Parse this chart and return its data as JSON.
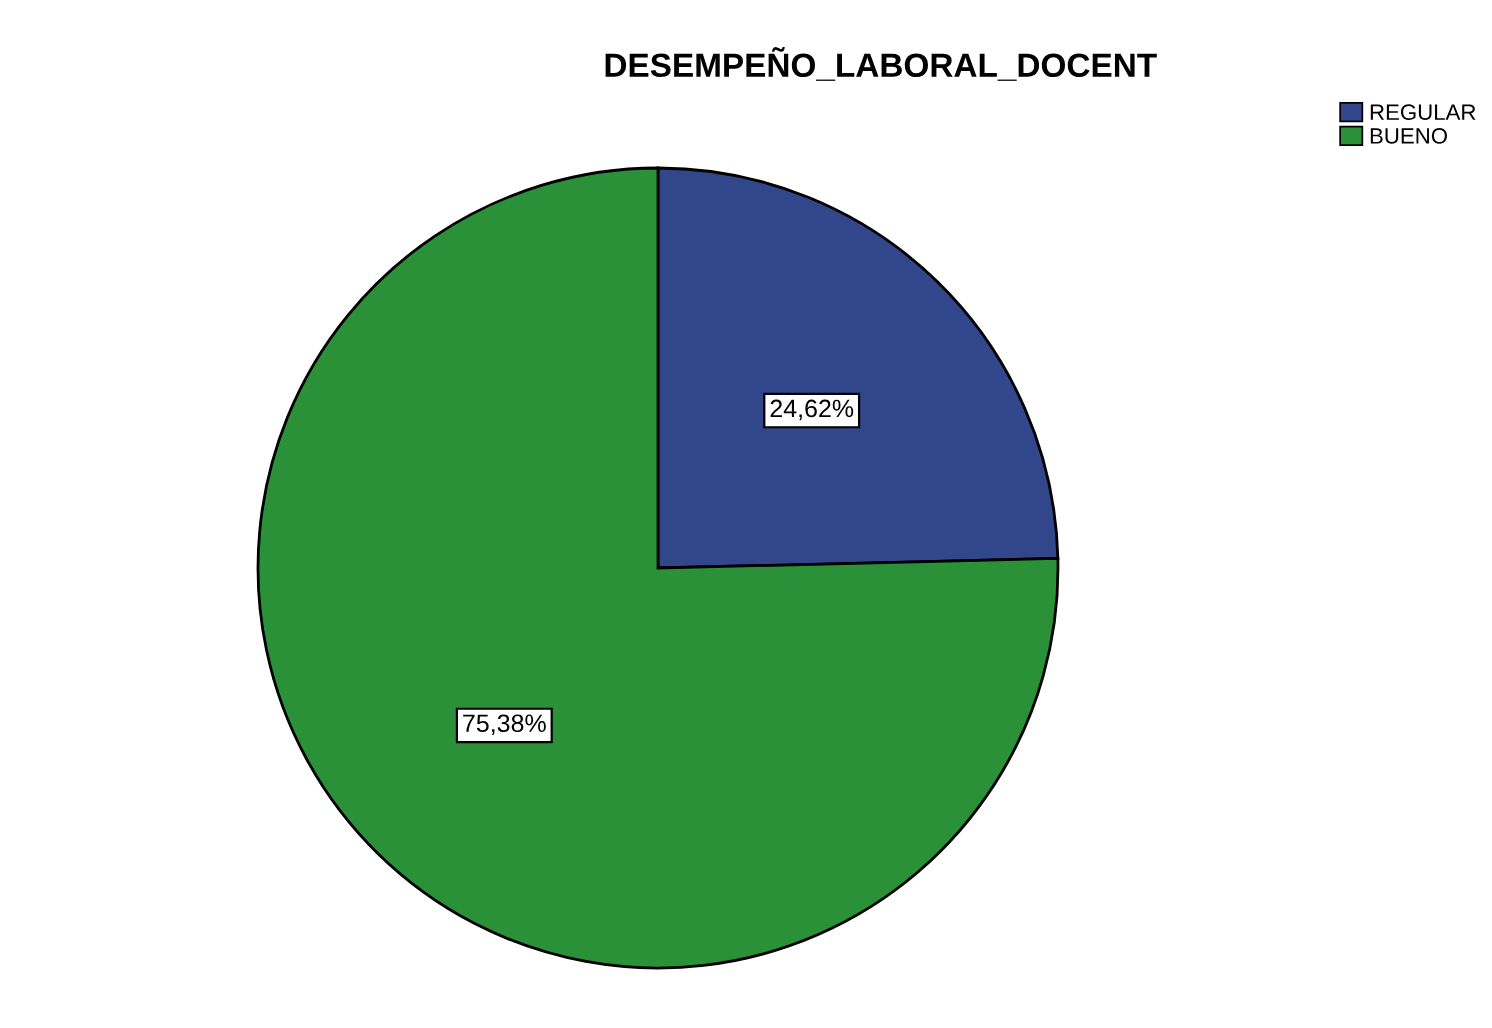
{
  "chart_data": {
    "type": "pie",
    "title": "DESEMPEÑO_LABORAL_DOCENT",
    "categories": [
      "REGULAR",
      "BUENO"
    ],
    "values": [
      24.62,
      75.38
    ],
    "colors": [
      "#32468c",
      "#2a9138"
    ],
    "value_labels": [
      "24,62%",
      "75,38%"
    ],
    "legend": "top right"
  }
}
